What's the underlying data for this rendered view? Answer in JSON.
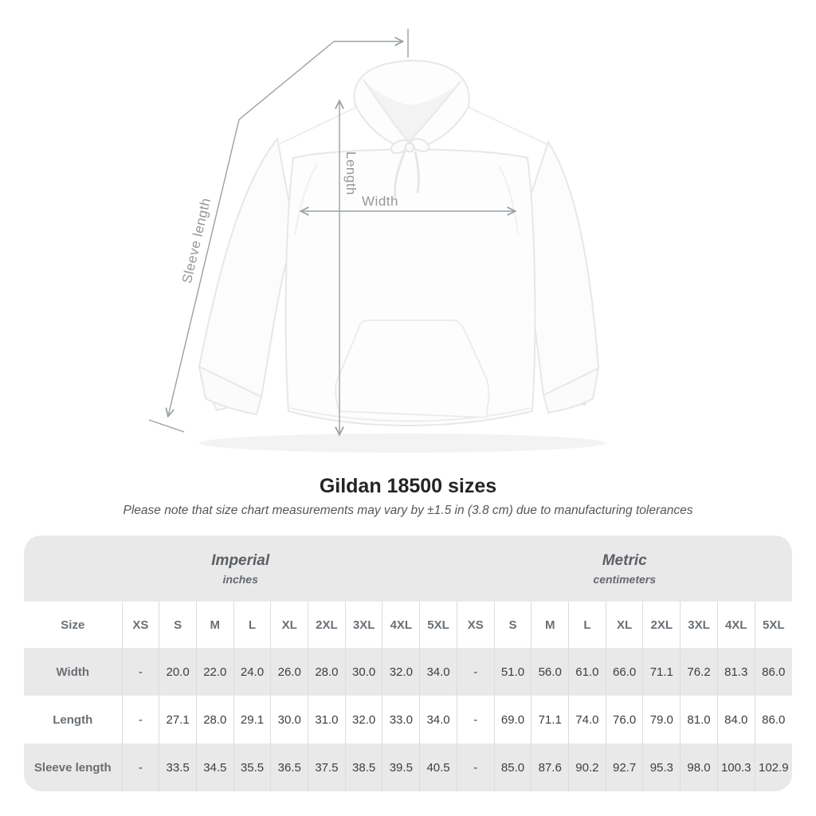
{
  "figure": {
    "labels": {
      "length": "Length",
      "width": "Width",
      "sleeve_length": "Sleeve length"
    }
  },
  "title": "Gildan 18500 sizes",
  "subtitle": "Please note that size chart measurements may vary by ±1.5 in (3.8 cm) due to manufacturing tolerances",
  "colors": {
    "measure_line": "#9aa0a4",
    "measure_label": "#94979b",
    "table_stripe": "#e9e9e9",
    "header_text": "#6a6f74",
    "cell_text": "#3c3e41"
  },
  "table": {
    "corner": "Size",
    "groups": [
      {
        "label": "Imperial",
        "unit": "inches"
      },
      {
        "label": "Metric",
        "unit": "centimeters"
      }
    ],
    "sizes": [
      "XS",
      "S",
      "M",
      "L",
      "XL",
      "2XL",
      "3XL",
      "4XL",
      "5XL"
    ],
    "rows": [
      {
        "label": "Width",
        "imperial": [
          "-",
          "20.0",
          "22.0",
          "24.0",
          "26.0",
          "28.0",
          "30.0",
          "32.0",
          "34.0"
        ],
        "metric": [
          "-",
          "51.0",
          "56.0",
          "61.0",
          "66.0",
          "71.1",
          "76.2",
          "81.3",
          "86.0"
        ]
      },
      {
        "label": "Length",
        "imperial": [
          "-",
          "27.1",
          "28.0",
          "29.1",
          "30.0",
          "31.0",
          "32.0",
          "33.0",
          "34.0"
        ],
        "metric": [
          "-",
          "69.0",
          "71.1",
          "74.0",
          "76.0",
          "79.0",
          "81.0",
          "84.0",
          "86.0"
        ]
      },
      {
        "label": "Sleeve length",
        "imperial": [
          "-",
          "33.5",
          "34.5",
          "35.5",
          "36.5",
          "37.5",
          "38.5",
          "39.5",
          "40.5"
        ],
        "metric": [
          "-",
          "85.0",
          "87.6",
          "90.2",
          "92.7",
          "95.3",
          "98.0",
          "100.3",
          "102.9"
        ]
      }
    ]
  },
  "chart_data": {
    "type": "table",
    "title": "Gildan 18500 sizes",
    "columns": [
      "Size",
      "XS",
      "S",
      "M",
      "L",
      "XL",
      "2XL",
      "3XL",
      "4XL",
      "5XL"
    ],
    "units": [
      "inches",
      "centimeters"
    ],
    "rows_inches": [
      [
        "Width",
        null,
        20.0,
        22.0,
        24.0,
        26.0,
        28.0,
        30.0,
        32.0,
        34.0
      ],
      [
        "Length",
        null,
        27.1,
        28.0,
        29.1,
        30.0,
        31.0,
        32.0,
        33.0,
        34.0
      ],
      [
        "Sleeve length",
        null,
        33.5,
        34.5,
        35.5,
        36.5,
        37.5,
        38.5,
        39.5,
        40.5
      ]
    ],
    "rows_centimeters": [
      [
        "Width",
        null,
        51.0,
        56.0,
        61.0,
        66.0,
        71.1,
        76.2,
        81.3,
        86.0
      ],
      [
        "Length",
        null,
        69.0,
        71.1,
        74.0,
        76.0,
        79.0,
        81.0,
        84.0,
        86.0
      ],
      [
        "Sleeve length",
        null,
        85.0,
        87.6,
        90.2,
        92.7,
        95.3,
        98.0,
        100.3,
        102.9
      ]
    ]
  }
}
